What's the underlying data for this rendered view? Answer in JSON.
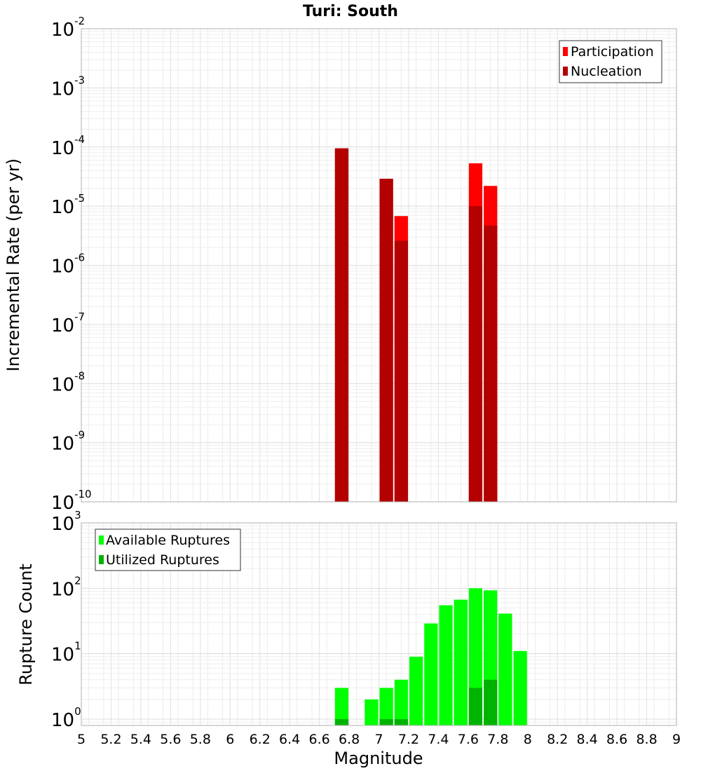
{
  "chart_data": [
    {
      "type": "bar",
      "title": "Turi: South",
      "xlabel": "",
      "ylabel": "Incremental Rate (per yr)",
      "xlim": [
        5,
        9
      ],
      "ylim": [
        1e-10,
        0.01
      ],
      "yscale": "log",
      "grid": true,
      "legend_position": "top-right",
      "y_ticks": [
        {
          "base": "10",
          "exp": "-10",
          "value": 1e-10
        },
        {
          "base": "10",
          "exp": "-9",
          "value": 1e-09
        },
        {
          "base": "10",
          "exp": "-8",
          "value": 1e-08
        },
        {
          "base": "10",
          "exp": "-7",
          "value": 1e-07
        },
        {
          "base": "10",
          "exp": "-6",
          "value": 1e-06
        },
        {
          "base": "10",
          "exp": "-5",
          "value": 1e-05
        },
        {
          "base": "10",
          "exp": "-4",
          "value": 0.0001
        },
        {
          "base": "10",
          "exp": "-3",
          "value": 0.001
        },
        {
          "base": "10",
          "exp": "-2",
          "value": 0.01
        }
      ],
      "series": [
        {
          "name": "Participation",
          "color": "#ff0000",
          "x": [
            6.75,
            7.05,
            7.15,
            7.65,
            7.75
          ],
          "values": [
            9.5e-05,
            2.9e-05,
            6.8e-06,
            5.3e-05,
            2.2e-05
          ]
        },
        {
          "name": "Nucleation",
          "color": "#b30000",
          "x": [
            6.75,
            7.05,
            7.15,
            7.65,
            7.75
          ],
          "values": [
            9.5e-05,
            2.9e-05,
            2.6e-06,
            1e-05,
            4.7e-06
          ]
        }
      ]
    },
    {
      "type": "bar",
      "title": "",
      "xlabel": "Magnitude",
      "ylabel": "Rupture Count",
      "xlim": [
        5,
        9
      ],
      "ylim": [
        0.8,
        1000
      ],
      "yscale": "log",
      "grid": true,
      "legend_position": "top-left",
      "x_ticks": [
        "5",
        "5.2",
        "5.4",
        "5.6",
        "5.8",
        "6",
        "6.2",
        "6.4",
        "6.6",
        "6.8",
        "7",
        "7.2",
        "7.4",
        "7.6",
        "7.8",
        "8",
        "8.2",
        "8.4",
        "8.6",
        "8.8",
        "9"
      ],
      "y_ticks": [
        {
          "base": "10",
          "exp": "0",
          "value": 1
        },
        {
          "base": "10",
          "exp": "1",
          "value": 10
        },
        {
          "base": "10",
          "exp": "2",
          "value": 100
        },
        {
          "base": "10",
          "exp": "3",
          "value": 1000
        }
      ],
      "series": [
        {
          "name": "Available Ruptures",
          "color": "#00ff00",
          "x": [
            6.75,
            6.95,
            7.05,
            7.15,
            7.25,
            7.35,
            7.45,
            7.55,
            7.65,
            7.75,
            7.85,
            7.95
          ],
          "values": [
            3,
            2,
            3,
            4,
            9,
            29,
            55,
            67,
            100,
            93,
            41,
            11
          ]
        },
        {
          "name": "Utilized Ruptures",
          "color": "#00b300",
          "x": [
            6.75,
            7.05,
            7.15,
            7.65,
            7.75
          ],
          "values": [
            1,
            1,
            1,
            3,
            4
          ]
        }
      ]
    }
  ]
}
